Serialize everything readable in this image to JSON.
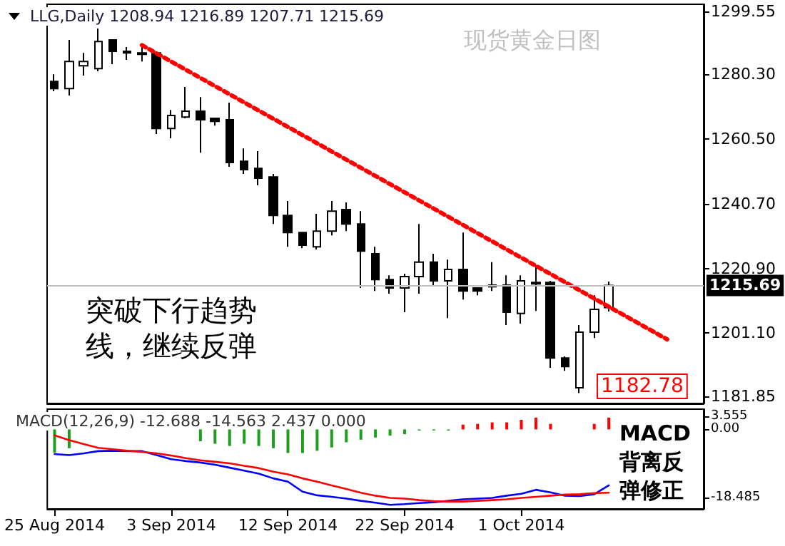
{
  "chart_data": [
    {
      "type": "candlestick",
      "title": "LLG,Daily 1208.94 1216.89 1207.71 1215.69",
      "subtitle": "现货黄金日图",
      "categories": [
        null,
        null,
        null,
        null,
        null,
        null,
        null,
        null,
        null,
        null,
        null,
        null,
        null,
        null,
        null,
        null,
        null,
        null,
        null,
        null,
        null,
        null,
        null,
        null,
        null,
        null,
        null,
        null,
        null,
        null,
        null,
        null,
        null,
        null,
        null,
        null,
        null,
        null,
        null,
        null,
        null,
        null,
        null,
        null,
        null
      ],
      "ohlc": [
        [
          1278.1,
          1280.3,
          1275.1,
          1275.9
        ],
        [
          1275.9,
          1290.8,
          1273.8,
          1284.2
        ],
        [
          1282.9,
          1286.8,
          1279.9,
          1284.2
        ],
        [
          1282.0,
          1294.3,
          1281.2,
          1290.3
        ],
        [
          1290.8,
          1290.8,
          1283.4,
          1287.3
        ],
        [
          1287.3,
          1288.6,
          1284.7,
          1286.8
        ],
        [
          1286.8,
          1288.6,
          1284.2,
          1286.4
        ],
        [
          1286.8,
          1287.3,
          1262.0,
          1263.7
        ],
        [
          1263.7,
          1269.4,
          1260.7,
          1267.7
        ],
        [
          1267.2,
          1276.4,
          1266.8,
          1269.0
        ],
        [
          1269.0,
          1273.3,
          1256.3,
          1266.4
        ],
        [
          1266.8,
          1266.8,
          1264.6,
          1265.9
        ],
        [
          1266.4,
          1271.6,
          1252.0,
          1253.3
        ],
        [
          1253.7,
          1257.6,
          1249.8,
          1251.1
        ],
        [
          1251.5,
          1256.8,
          1246.3,
          1248.5
        ],
        [
          1248.9,
          1249.8,
          1234.5,
          1237.1
        ],
        [
          1237.1,
          1241.5,
          1227.5,
          1231.9
        ],
        [
          1231.9,
          1231.9,
          1227.1,
          1228.0
        ],
        [
          1227.5,
          1237.6,
          1226.7,
          1232.3
        ],
        [
          1232.3,
          1241.5,
          1231.0,
          1238.4
        ],
        [
          1238.9,
          1241.1,
          1232.3,
          1234.5
        ],
        [
          1234.5,
          1238.4,
          1214.9,
          1226.2
        ],
        [
          1225.4,
          1227.5,
          1214.0,
          1217.5
        ],
        [
          1217.5,
          1218.8,
          1213.2,
          1214.9
        ],
        [
          1214.9,
          1219.3,
          1207.5,
          1218.4
        ],
        [
          1218.4,
          1234.5,
          1213.2,
          1222.8
        ],
        [
          1222.8,
          1225.4,
          1215.8,
          1217.1
        ],
        [
          1217.1,
          1223.6,
          1205.7,
          1220.6
        ],
        [
          1220.6,
          1231.9,
          1211.4,
          1214.0
        ],
        [
          1214.9,
          1214.9,
          1212.7,
          1214.0
        ],
        [
          1215.8,
          1222.8,
          1214.0,
          1215.3
        ],
        [
          1215.8,
          1218.8,
          1203.6,
          1207.5
        ],
        [
          1207.1,
          1218.8,
          1204.0,
          1217.1
        ],
        [
          1216.6,
          1221.9,
          1207.9,
          1216.2
        ],
        [
          1216.6,
          1217.1,
          1190.5,
          1193.5
        ],
        [
          1193.5,
          1194.0,
          1189.6,
          1190.9
        ],
        [
          1184.4,
          1203.6,
          1182.78,
          1201.4
        ],
        [
          1201.4,
          1212.7,
          1199.6,
          1208.4
        ],
        [
          1208.94,
          1216.89,
          1207.71,
          1215.69
        ],
        null,
        null,
        null,
        null,
        null,
        null
      ],
      "series": [
        {
          "type": "line",
          "color": "#ff0000",
          "line_style": "dotted",
          "values": [
            null,
            null,
            null,
            null,
            null,
            null,
            1289.2,
            null,
            null,
            null,
            null,
            null,
            null,
            null,
            null,
            null,
            null,
            null,
            null,
            null,
            null,
            null,
            null,
            null,
            null,
            null,
            null,
            null,
            null,
            null,
            null,
            null,
            null,
            null,
            null,
            null,
            null,
            null,
            null,
            null,
            null,
            null,
            1199.2,
            null,
            null
          ]
        }
      ],
      "ylim": [
        1179.6,
        1301.7
      ],
      "yticks": [
        {
          "value": 1181.85,
          "label": "1181.85"
        },
        {
          "value": 1201.1,
          "label": "1201.10"
        },
        {
          "value": 1220.9,
          "label": "1220.90"
        },
        {
          "value": 1240.7,
          "label": "1240.70"
        },
        {
          "value": 1260.5,
          "label": "1260.50"
        },
        {
          "value": 1280.3,
          "label": "1280.30"
        },
        {
          "value": 1299.55,
          "label": "1299.55"
        }
      ],
      "ref_lines": [
        {
          "axis": "y",
          "value": 1215.69,
          "label": "1215.69",
          "color": "#c0c0c0"
        }
      ],
      "annotations": [
        "突破下行趋势线，继续反弹",
        "1182.78"
      ],
      "tick_labels": "y",
      "marker": "none"
    },
    {
      "type": "bar",
      "title": "MACD(12,26,9) -12.688 -14.563 2.437 0.000",
      "categories": [
        "25 Aug 2014",
        null,
        null,
        null,
        null,
        null,
        null,
        null,
        "3 Sep 2014",
        null,
        null,
        null,
        null,
        null,
        null,
        null,
        "12 Sep 2014",
        null,
        null,
        null,
        null,
        null,
        null,
        null,
        "22 Sep 2014",
        null,
        null,
        null,
        null,
        null,
        null,
        null,
        "1 Oct 2014",
        null,
        null,
        null,
        null,
        null,
        null,
        null,
        null,
        null,
        null,
        null,
        null
      ],
      "series": [
        {
          "type": "bar",
          "values": [
            -6.3,
            -5.1,
            null,
            null,
            null,
            null,
            null,
            null,
            null,
            null,
            -3.2,
            -3.9,
            -4.5,
            -3.9,
            -4.5,
            -5.1,
            -6.4,
            -6.4,
            -5.8,
            -4.9,
            -3.5,
            -2.8,
            -2.2,
            -1.7,
            -1.3,
            -0.3,
            -0.3,
            -0.3,
            1.3,
            1.5,
            1.9,
            1.9,
            2.6,
            3.2,
            1.5,
            null,
            null,
            1.5,
            3.2,
            null,
            null,
            null,
            null,
            null,
            null
          ],
          "colors": [
            "#1e9e1e",
            "#1e9e1e",
            "#1e9e1e",
            "#1e9e1e",
            "#1e9e1e",
            "#1e9e1e",
            "#1e9e1e",
            "#1e9e1e",
            "#1e9e1e",
            "#1e9e1e",
            "#1e9e1e",
            "#1e9e1e",
            "#1e9e1e",
            "#1e9e1e",
            "#1e9e1e",
            "#1e9e1e",
            "#1e9e1e",
            "#1e9e1e",
            "#1e9e1e",
            "#1e9e1e",
            "#1e9e1e",
            "#1e9e1e",
            "#1e9e1e",
            "#1e9e1e",
            "#1e9e1e",
            "#1e9e1e",
            "#1e9e1e",
            "#1e9e1e",
            "#ff0000",
            "#ff0000",
            "#ff0000",
            "#ff0000",
            "#ff0000",
            "#ff0000",
            "#ff0000",
            "#ff0000",
            "#ff0000",
            "#ff0000",
            "#ff0000",
            "#ff0000",
            "#ff0000",
            "#ff0000",
            "#ff0000",
            "#ff0000",
            "#ff0000"
          ]
        },
        {
          "type": "line",
          "color": "#0000ff",
          "values": [
            -6.7,
            -7.0,
            -6.5,
            -5.9,
            -5.8,
            -5.9,
            -5.9,
            -7.0,
            -8.1,
            -8.6,
            -9.0,
            -9.6,
            -10.4,
            -11.2,
            -12.0,
            -13.3,
            -14.2,
            -16.9,
            -17.9,
            -18.3,
            -18.8,
            -19.4,
            -19.9,
            -20.5,
            -20.3,
            -20.0,
            -19.8,
            -19.4,
            -19.0,
            -18.8,
            -18.6,
            -18.0,
            -17.5,
            -16.4,
            -17.1,
            -18.0,
            -18.1,
            -17.6,
            -15.2,
            null,
            null,
            null,
            null,
            null,
            null
          ]
        },
        {
          "type": "line",
          "color": "#ff0000",
          "values": [
            -1.6,
            -2.9,
            -4.0,
            -5.0,
            -5.4,
            -5.8,
            -6.1,
            -6.5,
            -7.1,
            -7.8,
            -8.4,
            -8.8,
            -9.2,
            -9.9,
            -10.5,
            -11.5,
            -12.2,
            -13.3,
            -14.2,
            -15.2,
            -16.2,
            -17.2,
            -18.0,
            -18.6,
            -18.8,
            -19.2,
            -19.5,
            -19.6,
            -19.6,
            -19.4,
            -19.2,
            -19.0,
            -18.6,
            -18.3,
            -18.0,
            -17.7,
            -17.6,
            -17.3,
            -17.2,
            null,
            null,
            null,
            null,
            null,
            null
          ]
        }
      ],
      "ylim": [
        -21.6,
        5.5
      ],
      "yticks": [
        {
          "value": -18.485,
          "label": "-18.485"
        },
        {
          "value": 0,
          "label": "0.00"
        },
        {
          "value": 3.555,
          "label": "3.555"
        }
      ],
      "annotations": [
        "MACD背离反弹修正"
      ],
      "marker": "none"
    }
  ]
}
